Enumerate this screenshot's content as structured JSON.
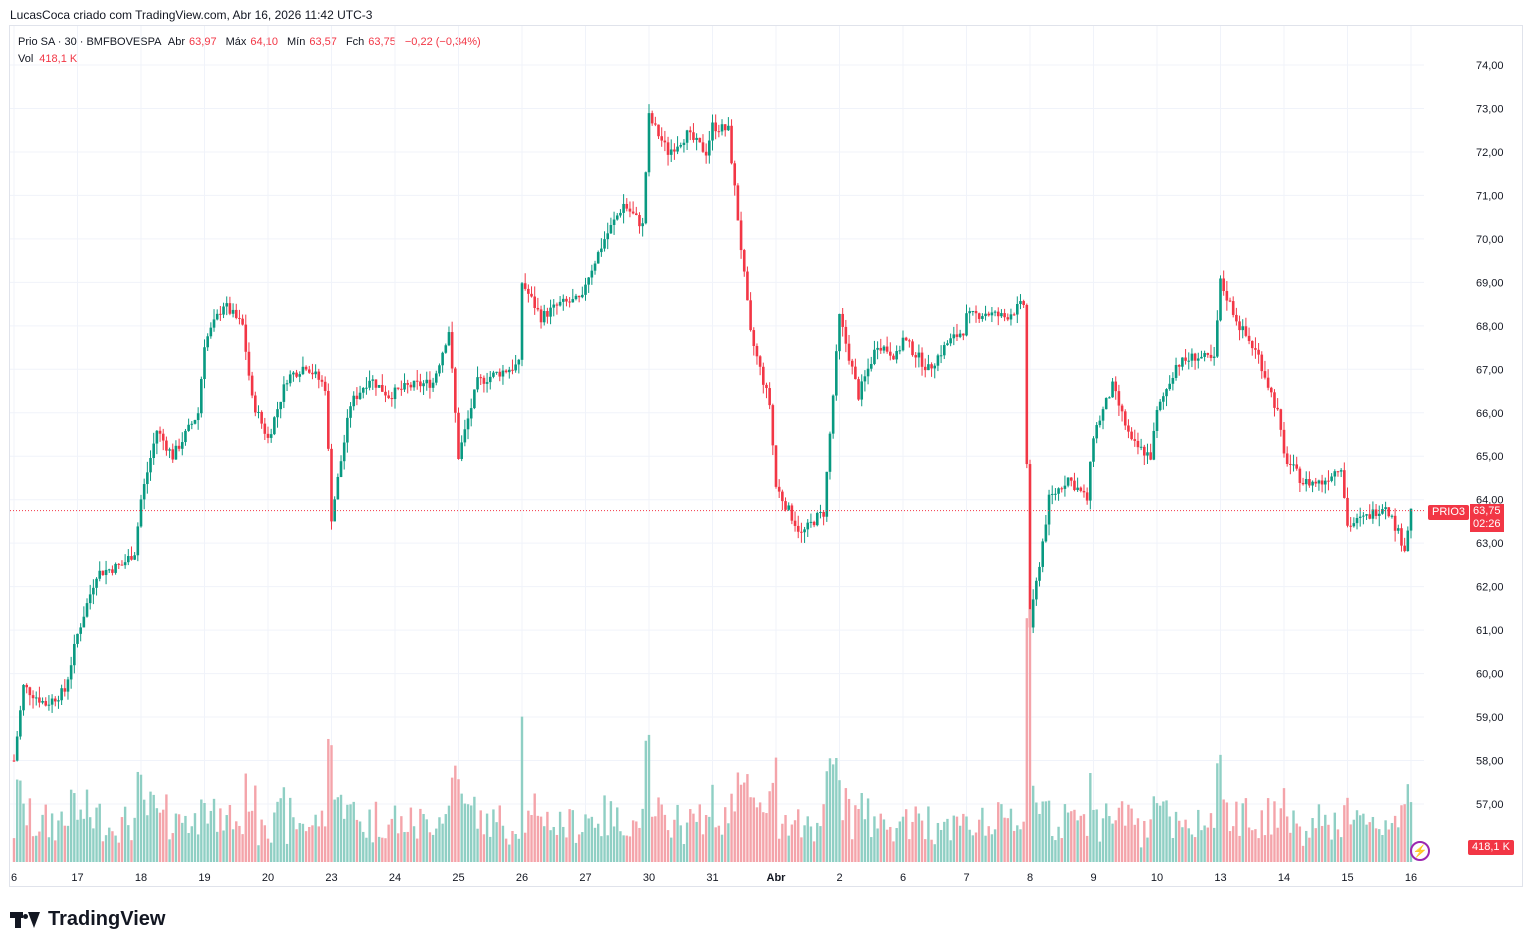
{
  "credit": "LucasCoca criado com TradingView.com, Abr 16, 2026 11:42 UTC-3",
  "legend": {
    "symbol": "Prio SA · 30 · BMFBOVESPA",
    "open_label": "Abr",
    "open": "63,97",
    "high_label": "Máx",
    "high": "64,10",
    "low_label": "Mín",
    "low": "63,57",
    "close_label": "Fch",
    "close": "63,75",
    "change": "−0,22 (−0,34%)",
    "vol_label": "Vol",
    "vol": "418,1 K"
  },
  "price_tag": {
    "ticker": "PRIO3",
    "price": "63,75",
    "countdown": "02:26"
  },
  "volume_tag": "418,1 K",
  "brand": "TradingView",
  "colors": {
    "up": "#089981",
    "down": "#f23645",
    "vol_up": "#8fcfc4",
    "vol_down": "#f4a4aa",
    "grid": "#f0f3fa"
  },
  "chart_data": {
    "type": "candlestick",
    "title": "Prio SA · 30 · BMFBOVESPA",
    "ylim": [
      57.0,
      74.0
    ],
    "y_ticks": [
      "74,00",
      "73,00",
      "72,00",
      "71,00",
      "70,00",
      "69,00",
      "68,00",
      "67,00",
      "66,00",
      "65,00",
      "64,00",
      "63,00",
      "62,00",
      "61,00",
      "60,00",
      "59,00",
      "58,00",
      "57,00"
    ],
    "x_ticks": [
      {
        "label": "6",
        "x": 0
      },
      {
        "label": "17",
        "x": 1
      },
      {
        "label": "18",
        "x": 2
      },
      {
        "label": "19",
        "x": 3
      },
      {
        "label": "20",
        "x": 4
      },
      {
        "label": "23",
        "x": 5
      },
      {
        "label": "24",
        "x": 6
      },
      {
        "label": "25",
        "x": 7
      },
      {
        "label": "26",
        "x": 8
      },
      {
        "label": "27",
        "x": 9
      },
      {
        "label": "30",
        "x": 10
      },
      {
        "label": "31",
        "x": 11
      },
      {
        "label": "Abr",
        "x": 12,
        "bold": true
      },
      {
        "label": "2",
        "x": 13
      },
      {
        "label": "6",
        "x": 14
      },
      {
        "label": "7",
        "x": 15
      },
      {
        "label": "8",
        "x": 16
      },
      {
        "label": "9",
        "x": 17
      },
      {
        "label": "10",
        "x": 18
      },
      {
        "label": "13",
        "x": 19
      },
      {
        "label": "14",
        "x": 20
      },
      {
        "label": "15",
        "x": 21
      },
      {
        "label": "16",
        "x": 22
      }
    ],
    "current_price": 63.75,
    "anchors": [
      [
        0,
        58.0
      ],
      [
        0.15,
        59.7
      ],
      [
        0.5,
        59.3
      ],
      [
        0.8,
        59.6
      ],
      [
        1.0,
        60.9
      ],
      [
        1.3,
        62.3
      ],
      [
        1.7,
        62.5
      ],
      [
        1.9,
        62.8
      ],
      [
        2.0,
        64.0
      ],
      [
        2.25,
        65.6
      ],
      [
        2.5,
        65.0
      ],
      [
        2.9,
        66.0
      ],
      [
        3.0,
        67.6
      ],
      [
        3.3,
        68.5
      ],
      [
        3.6,
        68.0
      ],
      [
        3.75,
        66.3
      ],
      [
        4.0,
        65.4
      ],
      [
        4.3,
        66.8
      ],
      [
        4.6,
        67.1
      ],
      [
        4.9,
        66.6
      ],
      [
        5.0,
        63.6
      ],
      [
        5.3,
        66.2
      ],
      [
        5.6,
        66.8
      ],
      [
        5.9,
        66.4
      ],
      [
        6.2,
        66.6
      ],
      [
        6.6,
        66.7
      ],
      [
        6.85,
        67.9
      ],
      [
        7.0,
        65.0
      ],
      [
        7.3,
        66.7
      ],
      [
        7.6,
        66.9
      ],
      [
        7.95,
        67.1
      ],
      [
        8.0,
        69.0
      ],
      [
        8.3,
        68.2
      ],
      [
        8.6,
        68.5
      ],
      [
        8.95,
        68.6
      ],
      [
        9.0,
        69.0
      ],
      [
        9.3,
        70.0
      ],
      [
        9.6,
        70.8
      ],
      [
        9.9,
        70.3
      ],
      [
        10.0,
        72.8
      ],
      [
        10.3,
        72.0
      ],
      [
        10.6,
        72.4
      ],
      [
        10.9,
        72.0
      ],
      [
        11.0,
        72.6
      ],
      [
        11.25,
        72.5
      ],
      [
        11.45,
        69.8
      ],
      [
        11.6,
        67.8
      ],
      [
        11.9,
        66.2
      ],
      [
        12.0,
        64.3
      ],
      [
        12.4,
        63.2
      ],
      [
        12.65,
        63.6
      ],
      [
        12.75,
        63.7
      ],
      [
        13.0,
        68.2
      ],
      [
        13.3,
        66.4
      ],
      [
        13.6,
        67.6
      ],
      [
        13.9,
        67.3
      ],
      [
        14.0,
        67.7
      ],
      [
        14.4,
        67.0
      ],
      [
        14.7,
        67.6
      ],
      [
        14.95,
        67.9
      ],
      [
        15.0,
        68.2
      ],
      [
        15.3,
        68.3
      ],
      [
        15.6,
        68.2
      ],
      [
        15.9,
        68.5
      ],
      [
        16.0,
        61.1
      ],
      [
        16.3,
        64.0
      ],
      [
        16.6,
        64.5
      ],
      [
        16.9,
        64.0
      ],
      [
        17.0,
        65.5
      ],
      [
        17.3,
        66.6
      ],
      [
        17.6,
        65.3
      ],
      [
        17.9,
        65.0
      ],
      [
        18.0,
        66.0
      ],
      [
        18.3,
        67.1
      ],
      [
        18.6,
        67.3
      ],
      [
        18.9,
        67.2
      ],
      [
        19.0,
        69.0
      ],
      [
        19.3,
        68.0
      ],
      [
        19.6,
        67.3
      ],
      [
        19.9,
        66.0
      ],
      [
        20.0,
        65.0
      ],
      [
        20.3,
        64.4
      ],
      [
        20.6,
        64.4
      ],
      [
        20.9,
        64.8
      ],
      [
        21.0,
        63.4
      ],
      [
        21.3,
        63.6
      ],
      [
        21.6,
        63.9
      ],
      [
        21.9,
        62.9
      ],
      [
        22.0,
        63.75
      ]
    ]
  }
}
